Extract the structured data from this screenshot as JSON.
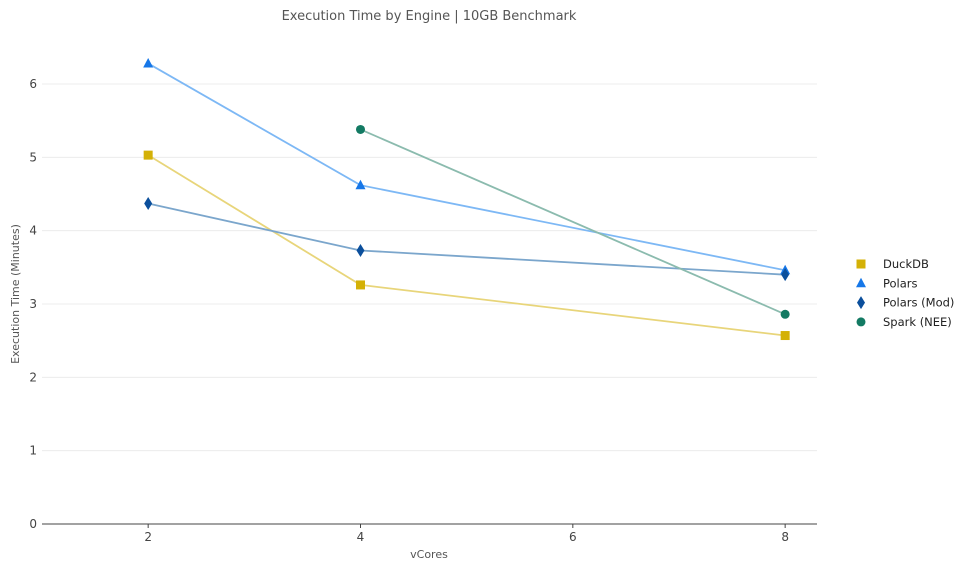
{
  "chart_data": {
    "type": "line",
    "title": "Execution Time by Engine | 10GB Benchmark",
    "xlabel": "vCores",
    "ylabel": "Execution Time (Minutes)",
    "xlim": [
      1,
      8.3
    ],
    "ylim": [
      0,
      6.6
    ],
    "x_ticks": [
      2,
      4,
      6,
      8
    ],
    "y_ticks": [
      0,
      1,
      2,
      3,
      4,
      5,
      6
    ],
    "grid": "horizontal",
    "legend_position": "right",
    "series": [
      {
        "name": "DuckDB",
        "marker": "square",
        "color": "#D4B106",
        "line_color": "#E8D57A",
        "points": [
          {
            "x": 2,
            "y": 5.03
          },
          {
            "x": 4,
            "y": 3.26
          },
          {
            "x": 8,
            "y": 2.57
          }
        ]
      },
      {
        "name": "Polars",
        "marker": "triangle",
        "color": "#1677E8",
        "line_color": "#7DB8F5",
        "points": [
          {
            "x": 2,
            "y": 6.28
          },
          {
            "x": 4,
            "y": 4.62
          },
          {
            "x": 8,
            "y": 3.46
          }
        ]
      },
      {
        "name": "Polars (Mod)",
        "marker": "diamond",
        "color": "#0B4F9C",
        "line_color": "#7BA6CC",
        "points": [
          {
            "x": 2,
            "y": 4.37
          },
          {
            "x": 4,
            "y": 3.73
          },
          {
            "x": 8,
            "y": 3.4
          }
        ]
      },
      {
        "name": "Spark (NEE)",
        "marker": "circle",
        "color": "#137A63",
        "line_color": "#8BBBAE",
        "points": [
          {
            "x": 4,
            "y": 5.38
          },
          {
            "x": 8,
            "y": 2.86
          }
        ]
      }
    ]
  }
}
